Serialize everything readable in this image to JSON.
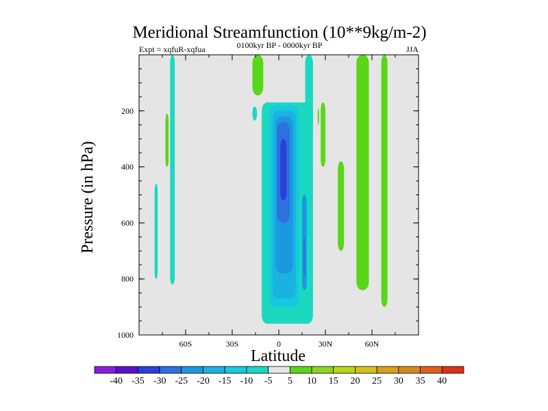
{
  "chart_data": {
    "type": "contour",
    "title": "Meridional Streamfunction (10**9kg/m-2)",
    "left_string": "Expt = xqfuR-xqfua",
    "center_string": "0100kyr BP - 0000kyr BP",
    "right_string": "JJA",
    "xlabel": "Latitude",
    "ylabel": "Pressure (in hPa)",
    "xlim": [
      -90,
      90
    ],
    "ylim": [
      1000,
      0
    ],
    "x_ticks": [
      {
        "value": -60,
        "label": "60S"
      },
      {
        "value": -30,
        "label": "30S"
      },
      {
        "value": 0,
        "label": "0"
      },
      {
        "value": 30,
        "label": "30N"
      },
      {
        "value": 60,
        "label": "60N"
      }
    ],
    "y_ticks": [
      {
        "value": 200,
        "label": "200"
      },
      {
        "value": 400,
        "label": "400"
      },
      {
        "value": 600,
        "label": "600"
      },
      {
        "value": 800,
        "label": "800"
      },
      {
        "value": 1000,
        "label": "1000"
      }
    ],
    "background_color": "#e5e5e5",
    "colorbar": {
      "levels": [
        "-40",
        "-35",
        "-30",
        "-25",
        "-20",
        "-15",
        "-10",
        "-5",
        "5",
        "10",
        "15",
        "20",
        "25",
        "30",
        "35",
        "40"
      ],
      "colors": [
        "#8a1ce0",
        "#5a10cc",
        "#2c3fd9",
        "#2f6fe0",
        "#1a98e0",
        "#1ab2e0",
        "#17c9e0",
        "#1ad9c0",
        "#e5e5e5",
        "#5ad61a",
        "#8ad61a",
        "#b8d61a",
        "#d6c01a",
        "#d6a01a",
        "#d68a1a",
        "#e0601a",
        "#e0301a"
      ]
    },
    "regions": [
      {
        "band": "5",
        "color": "#5ad61a",
        "lat": [
          -17,
          -10
        ],
        "p": [
          0,
          145
        ]
      },
      {
        "band": "-5",
        "color": "#1ad9c0",
        "lat": [
          -17,
          -14
        ],
        "p": [
          185,
          235
        ]
      },
      {
        "band": "-5",
        "color": "#1ad9c0",
        "lat": [
          -70,
          -67
        ],
        "p": [
          0,
          820
        ]
      },
      {
        "band": "5",
        "color": "#5ad61a",
        "lat": [
          -73,
          -71
        ],
        "p": [
          210,
          400
        ]
      },
      {
        "band": "-5",
        "color": "#1ad9c0",
        "lat": [
          -80,
          -78
        ],
        "p": [
          460,
          800
        ]
      },
      {
        "band": "-5",
        "color": "#1ad9c0",
        "lat": [
          -11,
          22
        ],
        "p": [
          170,
          960
        ]
      },
      {
        "band": "-10",
        "color": "#17c9e0",
        "lat": [
          -6,
          13
        ],
        "p": [
          180,
          900
        ]
      },
      {
        "band": "-15",
        "color": "#1ab2e0",
        "lat": [
          -4,
          11
        ],
        "p": [
          200,
          870
        ]
      },
      {
        "band": "-20",
        "color": "#1a98e0",
        "lat": [
          -2,
          9
        ],
        "p": [
          220,
          780
        ]
      },
      {
        "band": "-25",
        "color": "#2f6fe0",
        "lat": [
          -1,
          7
        ],
        "p": [
          240,
          600
        ]
      },
      {
        "band": "-30",
        "color": "#2c3fd9",
        "lat": [
          1,
          5
        ],
        "p": [
          300,
          520
        ]
      },
      {
        "band": "-20",
        "color": "#1a98e0",
        "lat": [
          15,
          18
        ],
        "p": [
          500,
          840
        ]
      },
      {
        "band": "-25",
        "color": "#2f6fe0",
        "lat": [
          16,
          17
        ],
        "p": [
          650,
          790
        ]
      },
      {
        "band": "-5",
        "color": "#1ad9c0",
        "lat": [
          17,
          22
        ],
        "p": [
          0,
          300
        ]
      },
      {
        "band": "5",
        "color": "#5ad61a",
        "lat": [
          25,
          26
        ],
        "p": [
          190,
          250
        ]
      },
      {
        "band": "5",
        "color": "#5ad61a",
        "lat": [
          27,
          30
        ],
        "p": [
          170,
          400
        ]
      },
      {
        "band": "5",
        "color": "#5ad61a",
        "lat": [
          38,
          42
        ],
        "p": [
          380,
          700
        ]
      },
      {
        "band": "5",
        "color": "#5ad61a",
        "lat": [
          50,
          58
        ],
        "p": [
          0,
          840
        ]
      },
      {
        "band": "5",
        "color": "#5ad61a",
        "lat": [
          66,
          70
        ],
        "p": [
          0,
          900
        ]
      }
    ]
  }
}
